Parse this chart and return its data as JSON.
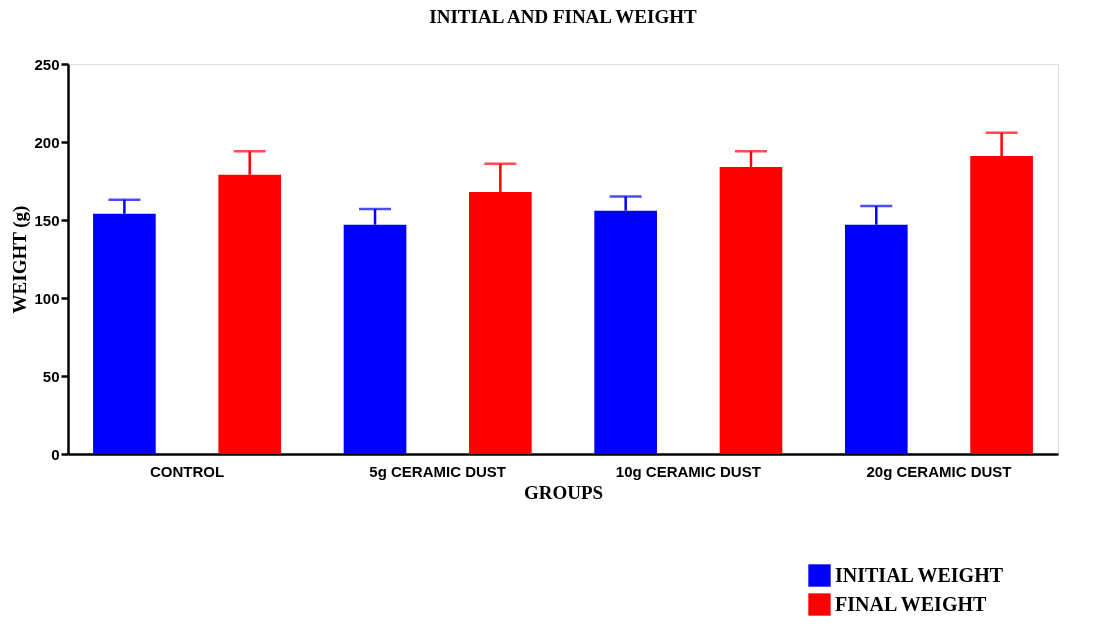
{
  "chart_data": {
    "type": "bar",
    "title": "INITIAL AND FINAL WEIGHT",
    "xlabel": "GROUPS",
    "ylabel": "WEIGHT (g)",
    "categories": [
      "CONTROL",
      "5g CERAMIC DUST",
      "10g CERAMIC DUST",
      "20g CERAMIC DUST"
    ],
    "series": [
      {
        "name": "INITIAL WEIGHT",
        "color": "#0000ff",
        "values": [
          154,
          147,
          156,
          147
        ],
        "errors": [
          [
            154,
            163
          ],
          [
            147,
            157
          ],
          [
            156,
            165
          ],
          [
            147,
            159
          ]
        ]
      },
      {
        "name": "FINAL WEIGHT",
        "color": "#ff0000",
        "values": [
          179,
          168,
          184,
          191
        ],
        "errors": [
          [
            179,
            194
          ],
          [
            168,
            186
          ],
          [
            184,
            194
          ],
          [
            191,
            206
          ]
        ]
      }
    ],
    "ylim": [
      0,
      250
    ],
    "yticks": [
      0,
      50,
      100,
      150,
      200,
      250
    ],
    "grid": false,
    "legend": "bottom right"
  }
}
